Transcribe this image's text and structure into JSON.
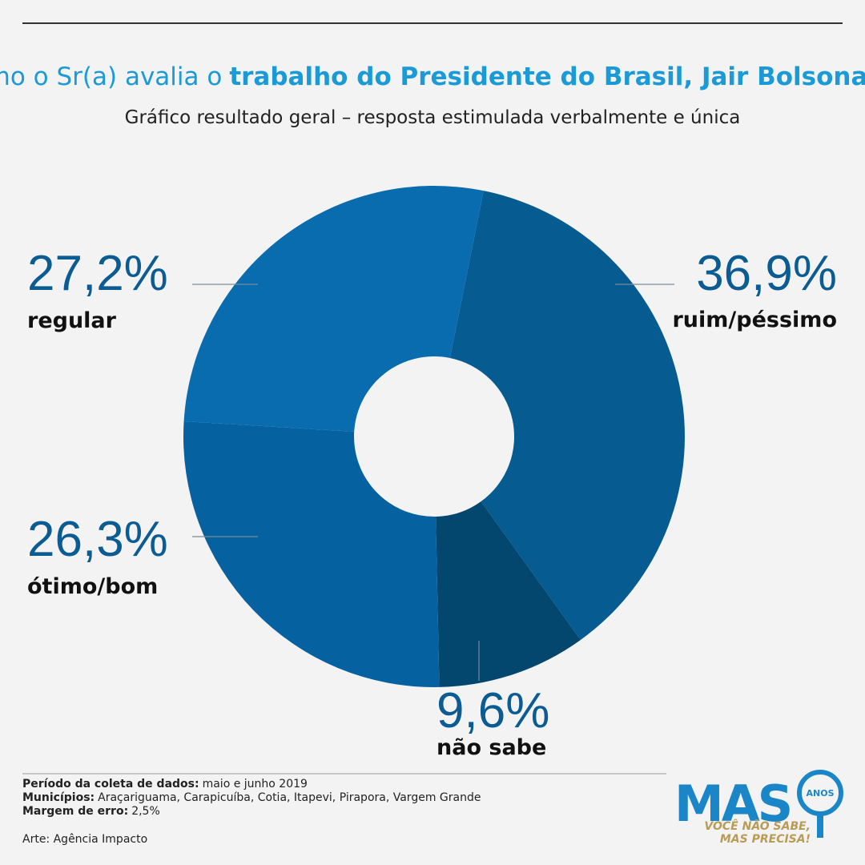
{
  "chart_data": {
    "type": "donut",
    "title": {
      "regular": "Como o Sr(a) avalia o",
      "bold": "trabalho do Presidente do Brasil, Jair Bolsonaro?"
    },
    "subtitle": "Gráfico resultado geral – resposta estimulada verbalmente e única",
    "categories": [
      "ruim/péssimo",
      "não sabe",
      "ótimo/bom",
      "regular"
    ],
    "values": [
      36.9,
      9.6,
      26.3,
      27.2
    ],
    "value_labels": [
      "36,9%",
      "9,6%",
      "26,3%",
      "27,2%"
    ],
    "colors": [
      "#065b91",
      "#03476f",
      "#0561a0",
      "#086cae"
    ]
  },
  "footer": {
    "items": [
      {
        "label": "Período da coleta de dados:",
        "value": "maio e junho 2019"
      },
      {
        "label": "Municípios:",
        "value": "Araçariguama, Carapicuíba, Cotia, Itapevi, Pirapora, Vargem Grande"
      },
      {
        "label": "Margem de erro:",
        "value": "2,5%"
      }
    ],
    "credit": "Arte: Agência Impacto"
  },
  "logo": {
    "name": "MAS",
    "badge": "ANOS",
    "tagline1": "VOCÊ NÃO SABE,",
    "tagline2": "MAS PRECISA!"
  }
}
